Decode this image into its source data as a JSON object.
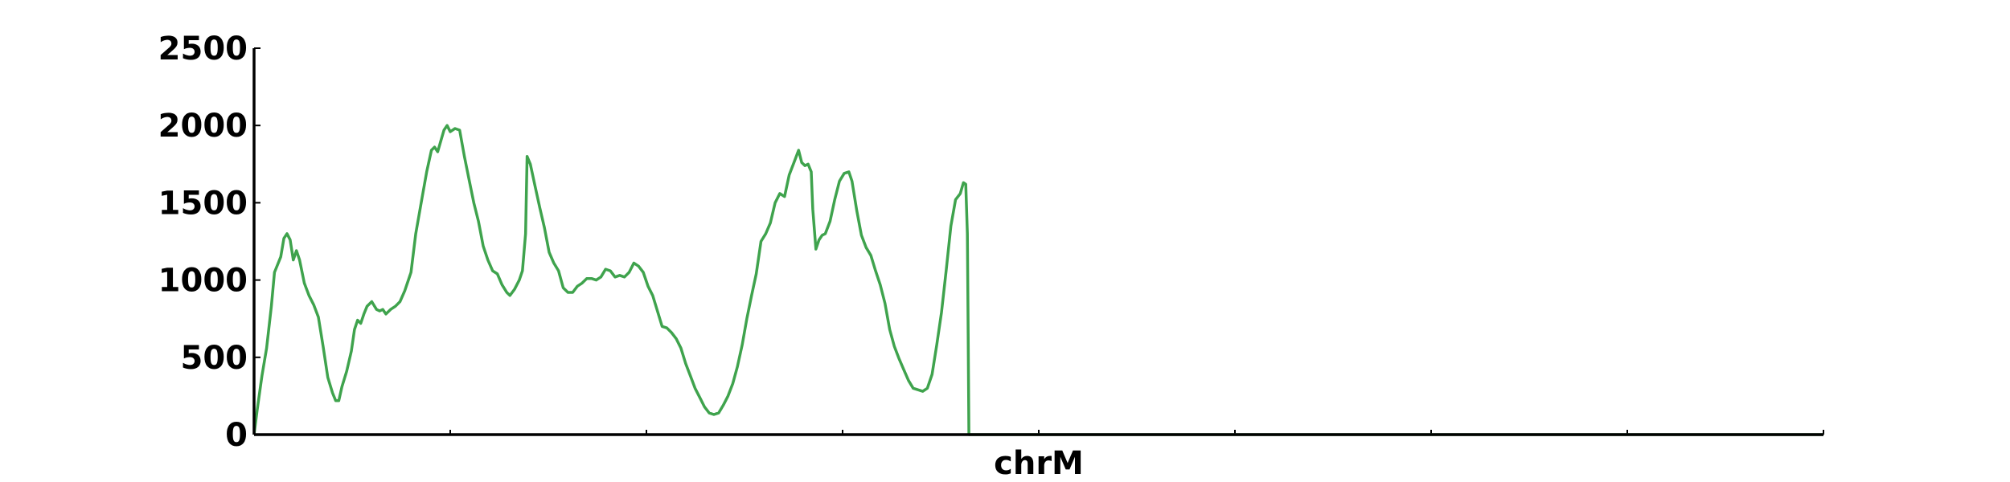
{
  "chart_data": {
    "type": "line",
    "title": "",
    "xlabel": "chrM",
    "ylabel": "",
    "ylim": [
      0,
      2500
    ],
    "xlim": [
      0,
      1
    ],
    "yticks": [
      "0",
      "500",
      "1000",
      "1500",
      "2000",
      "2500"
    ],
    "x_tick_count": 8,
    "grid": false,
    "legend": "none",
    "colors": {
      "line": "#3fa34d",
      "axis": "#000000"
    },
    "series": [
      {
        "values": [
          [
            0.0,
            0
          ],
          [
            0.002,
            160
          ],
          [
            0.005,
            380
          ],
          [
            0.008,
            560
          ],
          [
            0.011,
            830
          ],
          [
            0.013,
            1050
          ],
          [
            0.015,
            1100
          ],
          [
            0.017,
            1150
          ],
          [
            0.019,
            1270
          ],
          [
            0.021,
            1300
          ],
          [
            0.023,
            1260
          ],
          [
            0.025,
            1130
          ],
          [
            0.027,
            1190
          ],
          [
            0.029,
            1130
          ],
          [
            0.032,
            980
          ],
          [
            0.035,
            900
          ],
          [
            0.038,
            840
          ],
          [
            0.041,
            760
          ],
          [
            0.044,
            570
          ],
          [
            0.047,
            370
          ],
          [
            0.05,
            270
          ],
          [
            0.052,
            220
          ],
          [
            0.054,
            220
          ],
          [
            0.056,
            310
          ],
          [
            0.059,
            410
          ],
          [
            0.062,
            540
          ],
          [
            0.064,
            680
          ],
          [
            0.066,
            740
          ],
          [
            0.068,
            720
          ],
          [
            0.07,
            780
          ],
          [
            0.072,
            830
          ],
          [
            0.075,
            860
          ],
          [
            0.078,
            810
          ],
          [
            0.08,
            800
          ],
          [
            0.082,
            810
          ],
          [
            0.084,
            780
          ],
          [
            0.087,
            810
          ],
          [
            0.09,
            830
          ],
          [
            0.093,
            860
          ],
          [
            0.096,
            930
          ],
          [
            0.1,
            1050
          ],
          [
            0.103,
            1300
          ],
          [
            0.107,
            1530
          ],
          [
            0.11,
            1700
          ],
          [
            0.113,
            1840
          ],
          [
            0.115,
            1860
          ],
          [
            0.117,
            1830
          ],
          [
            0.119,
            1900
          ],
          [
            0.121,
            1970
          ],
          [
            0.123,
            2000
          ],
          [
            0.125,
            1960
          ],
          [
            0.128,
            1980
          ],
          [
            0.131,
            1970
          ],
          [
            0.134,
            1800
          ],
          [
            0.137,
            1650
          ],
          [
            0.14,
            1500
          ],
          [
            0.143,
            1380
          ],
          [
            0.146,
            1220
          ],
          [
            0.149,
            1130
          ],
          [
            0.152,
            1060
          ],
          [
            0.155,
            1040
          ],
          [
            0.158,
            970
          ],
          [
            0.161,
            920
          ],
          [
            0.163,
            900
          ],
          [
            0.166,
            940
          ],
          [
            0.169,
            1000
          ],
          [
            0.171,
            1060
          ],
          [
            0.173,
            1300
          ],
          [
            0.174,
            1800
          ],
          [
            0.176,
            1750
          ],
          [
            0.179,
            1610
          ],
          [
            0.182,
            1470
          ],
          [
            0.185,
            1340
          ],
          [
            0.188,
            1180
          ],
          [
            0.191,
            1110
          ],
          [
            0.194,
            1060
          ],
          [
            0.197,
            950
          ],
          [
            0.2,
            920
          ],
          [
            0.203,
            920
          ],
          [
            0.206,
            960
          ],
          [
            0.209,
            980
          ],
          [
            0.212,
            1010
          ],
          [
            0.215,
            1010
          ],
          [
            0.218,
            1000
          ],
          [
            0.221,
            1020
          ],
          [
            0.224,
            1070
          ],
          [
            0.227,
            1060
          ],
          [
            0.23,
            1020
          ],
          [
            0.233,
            1030
          ],
          [
            0.236,
            1020
          ],
          [
            0.239,
            1050
          ],
          [
            0.242,
            1110
          ],
          [
            0.245,
            1090
          ],
          [
            0.248,
            1050
          ],
          [
            0.251,
            960
          ],
          [
            0.254,
            900
          ],
          [
            0.257,
            800
          ],
          [
            0.26,
            700
          ],
          [
            0.263,
            690
          ],
          [
            0.266,
            660
          ],
          [
            0.269,
            620
          ],
          [
            0.272,
            560
          ],
          [
            0.275,
            460
          ],
          [
            0.278,
            380
          ],
          [
            0.281,
            300
          ],
          [
            0.284,
            240
          ],
          [
            0.287,
            180
          ],
          [
            0.29,
            140
          ],
          [
            0.293,
            130
          ],
          [
            0.296,
            140
          ],
          [
            0.299,
            190
          ],
          [
            0.302,
            250
          ],
          [
            0.305,
            330
          ],
          [
            0.308,
            440
          ],
          [
            0.311,
            580
          ],
          [
            0.314,
            750
          ],
          [
            0.317,
            900
          ],
          [
            0.32,
            1040
          ],
          [
            0.323,
            1250
          ],
          [
            0.326,
            1300
          ],
          [
            0.329,
            1370
          ],
          [
            0.332,
            1500
          ],
          [
            0.335,
            1560
          ],
          [
            0.338,
            1540
          ],
          [
            0.341,
            1680
          ],
          [
            0.344,
            1760
          ],
          [
            0.347,
            1840
          ],
          [
            0.349,
            1760
          ],
          [
            0.351,
            1740
          ],
          [
            0.353,
            1750
          ],
          [
            0.355,
            1700
          ],
          [
            0.356,
            1460
          ],
          [
            0.358,
            1200
          ],
          [
            0.36,
            1260
          ],
          [
            0.362,
            1290
          ],
          [
            0.364,
            1300
          ],
          [
            0.367,
            1380
          ],
          [
            0.37,
            1520
          ],
          [
            0.373,
            1640
          ],
          [
            0.376,
            1690
          ],
          [
            0.379,
            1700
          ],
          [
            0.381,
            1640
          ],
          [
            0.384,
            1450
          ],
          [
            0.387,
            1290
          ],
          [
            0.39,
            1210
          ],
          [
            0.393,
            1160
          ],
          [
            0.396,
            1060
          ],
          [
            0.399,
            970
          ],
          [
            0.402,
            850
          ],
          [
            0.405,
            680
          ],
          [
            0.408,
            570
          ],
          [
            0.411,
            490
          ],
          [
            0.414,
            420
          ],
          [
            0.417,
            350
          ],
          [
            0.42,
            300
          ],
          [
            0.423,
            290
          ],
          [
            0.426,
            280
          ],
          [
            0.429,
            300
          ],
          [
            0.432,
            390
          ],
          [
            0.435,
            580
          ],
          [
            0.438,
            790
          ],
          [
            0.441,
            1060
          ],
          [
            0.444,
            1350
          ],
          [
            0.447,
            1520
          ],
          [
            0.45,
            1560
          ],
          [
            0.452,
            1630
          ],
          [
            0.4535,
            1620
          ],
          [
            0.4545,
            1300
          ],
          [
            0.455,
            650
          ],
          [
            0.4555,
            0
          ],
          [
            0.457,
            0
          ],
          [
            1.0,
            0
          ]
        ]
      }
    ]
  }
}
